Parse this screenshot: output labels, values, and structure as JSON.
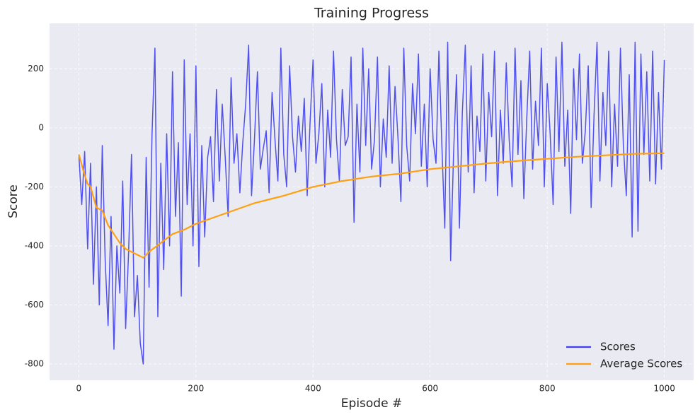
{
  "chart_data": {
    "type": "line",
    "title": "Training Progress",
    "x_label": "Episode #",
    "y_label": "Score",
    "xlim": [
      -50,
      1050
    ],
    "ylim": [
      -855,
      354
    ],
    "xticks": [
      0,
      200,
      400,
      600,
      800,
      1000
    ],
    "yticks": [
      -800,
      -600,
      -400,
      -200,
      0,
      200
    ],
    "grid": true,
    "legend": "lower right",
    "series": [
      {
        "name": "Scores",
        "color": "#4040f0",
        "x": [
          0,
          5,
          10,
          15,
          20,
          25,
          30,
          35,
          40,
          45,
          50,
          55,
          60,
          65,
          70,
          75,
          80,
          85,
          90,
          95,
          100,
          105,
          110,
          115,
          120,
          125,
          130,
          135,
          140,
          145,
          150,
          155,
          160,
          165,
          170,
          175,
          180,
          185,
          190,
          195,
          200,
          205,
          210,
          215,
          220,
          225,
          230,
          235,
          240,
          245,
          250,
          255,
          260,
          265,
          270,
          275,
          280,
          285,
          290,
          295,
          300,
          305,
          310,
          315,
          320,
          325,
          330,
          335,
          340,
          345,
          350,
          355,
          360,
          365,
          370,
          375,
          380,
          385,
          390,
          395,
          400,
          405,
          410,
          415,
          420,
          425,
          430,
          435,
          440,
          445,
          450,
          455,
          460,
          465,
          470,
          475,
          480,
          485,
          490,
          495,
          500,
          505,
          510,
          515,
          520,
          525,
          530,
          535,
          540,
          545,
          550,
          555,
          560,
          565,
          570,
          575,
          580,
          585,
          590,
          595,
          600,
          605,
          610,
          615,
          620,
          625,
          630,
          635,
          640,
          645,
          650,
          655,
          660,
          665,
          670,
          675,
          680,
          685,
          690,
          695,
          700,
          705,
          710,
          715,
          720,
          725,
          730,
          735,
          740,
          745,
          750,
          755,
          760,
          765,
          770,
          775,
          780,
          785,
          790,
          795,
          800,
          805,
          810,
          815,
          820,
          825,
          830,
          835,
          840,
          845,
          850,
          855,
          860,
          865,
          870,
          875,
          880,
          885,
          890,
          895,
          900,
          905,
          910,
          915,
          920,
          925,
          930,
          935,
          940,
          945,
          950,
          955,
          960,
          965,
          970,
          975,
          980,
          985,
          990,
          995,
          1000
        ],
        "values": [
          -90,
          -260,
          -80,
          -410,
          -120,
          -530,
          -200,
          -600,
          -60,
          -450,
          -670,
          -300,
          -750,
          -400,
          -560,
          -180,
          -680,
          -420,
          -90,
          -640,
          -500,
          -730,
          -800,
          -100,
          -540,
          -20,
          270,
          -640,
          -120,
          -480,
          -20,
          -400,
          190,
          -300,
          -50,
          -570,
          230,
          -260,
          -20,
          -400,
          210,
          -470,
          -60,
          -370,
          -100,
          -30,
          -250,
          130,
          -180,
          80,
          -100,
          -300,
          170,
          -120,
          -20,
          -220,
          -50,
          80,
          280,
          -230,
          -40,
          190,
          -140,
          -70,
          -10,
          -220,
          120,
          -40,
          -180,
          270,
          -90,
          -200,
          210,
          -30,
          -150,
          40,
          -80,
          100,
          -230,
          20,
          230,
          -120,
          -20,
          150,
          -200,
          60,
          -100,
          260,
          -40,
          -180,
          130,
          -60,
          -30,
          240,
          -320,
          80,
          -150,
          270,
          -60,
          200,
          -140,
          -40,
          240,
          -200,
          30,
          -100,
          210,
          -120,
          140,
          -30,
          -250,
          270,
          -60,
          -180,
          150,
          -20,
          250,
          -130,
          80,
          -200,
          200,
          -40,
          -120,
          260,
          -60,
          -340,
          290,
          -450,
          -90,
          180,
          -340,
          50,
          280,
          -150,
          210,
          -220,
          40,
          -80,
          250,
          -180,
          120,
          -30,
          260,
          -230,
          60,
          -120,
          220,
          -40,
          -200,
          270,
          -90,
          160,
          -240,
          30,
          260,
          -140,
          90,
          -60,
          270,
          -200,
          150,
          -20,
          -260,
          240,
          -80,
          290,
          -130,
          60,
          -290,
          200,
          -40,
          250,
          -120,
          -10,
          210,
          -270,
          50,
          290,
          -180,
          120,
          -60,
          260,
          -200,
          80,
          -130,
          270,
          -60,
          -230,
          180,
          -370,
          290,
          -350,
          250,
          -90,
          190,
          -180,
          260,
          -190,
          120,
          -140,
          230
        ]
      },
      {
        "name": "Average Scores",
        "color": "#ffa010",
        "x": [
          0,
          10,
          15,
          20,
          30,
          40,
          50,
          60,
          70,
          80,
          90,
          100,
          110,
          120,
          140,
          160,
          180,
          200,
          250,
          300,
          350,
          400,
          450,
          500,
          550,
          600,
          650,
          700,
          750,
          800,
          850,
          900,
          950,
          1000
        ],
        "values": [
          -90,
          -160,
          -190,
          -200,
          -270,
          -280,
          -330,
          -360,
          -390,
          -410,
          -420,
          -430,
          -440,
          -420,
          -390,
          -360,
          -345,
          -325,
          -290,
          -255,
          -230,
          -200,
          -180,
          -165,
          -155,
          -140,
          -130,
          -120,
          -112,
          -105,
          -98,
          -93,
          -88,
          -86
        ]
      }
    ]
  }
}
